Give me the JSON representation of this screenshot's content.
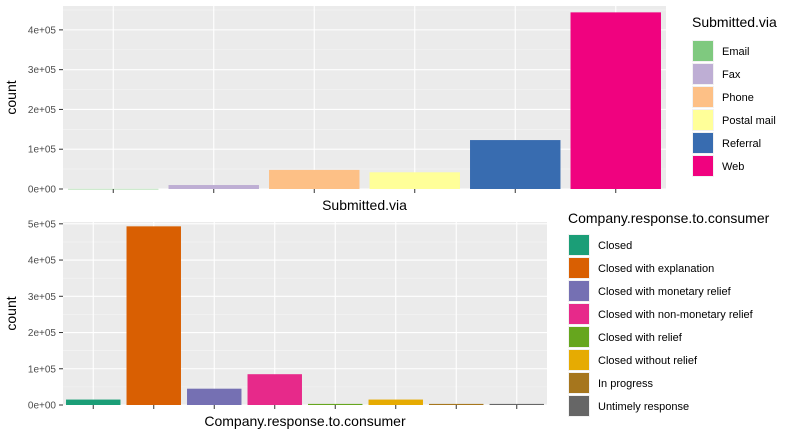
{
  "chart_data": [
    {
      "type": "bar",
      "xlabel": "Submitted.via",
      "ylabel": "count",
      "ylim": [
        0,
        460000
      ],
      "yticks": [
        0,
        100000,
        200000,
        300000,
        400000
      ],
      "ytick_labels": [
        "0e+00",
        "1e+05",
        "2e+05",
        "3e+05",
        "4e+05"
      ],
      "xtick_labels_shown": false,
      "grid": true,
      "legend_title": "Submitted.via",
      "legend_position": "right",
      "categories": [
        "Email",
        "Fax",
        "Phone",
        "Postal mail",
        "Referral",
        "Web"
      ],
      "values": [
        300,
        10000,
        48000,
        42000,
        123000,
        444000
      ],
      "colors": [
        "#7FC97F",
        "#BEAED4",
        "#FDC086",
        "#FFFF99",
        "#386CB0",
        "#F0027F"
      ]
    },
    {
      "type": "bar",
      "xlabel": "Company.response.to.consumer",
      "ylabel": "count",
      "ylim": [
        0,
        505000
      ],
      "yticks": [
        0,
        100000,
        200000,
        300000,
        400000,
        500000
      ],
      "ytick_labels": [
        "0e+00",
        "1e+05",
        "2e+05",
        "3e+05",
        "4e+05",
        "5e+05"
      ],
      "xtick_labels_shown": false,
      "grid": true,
      "legend_title": "Company.response.to.consumer",
      "legend_position": "right",
      "categories": [
        "Closed",
        "Closed with explanation",
        "Closed with monetary relief",
        "Closed with non-monetary relief",
        "Closed with relief",
        "Closed without relief",
        "In progress",
        "Untimely response"
      ],
      "values": [
        15000,
        493000,
        45000,
        85000,
        3000,
        15000,
        3000,
        3000
      ],
      "colors": [
        "#1B9E77",
        "#D95F02",
        "#7570B3",
        "#E7298A",
        "#66A61E",
        "#E6AB02",
        "#A6761D",
        "#666666"
      ]
    }
  ]
}
